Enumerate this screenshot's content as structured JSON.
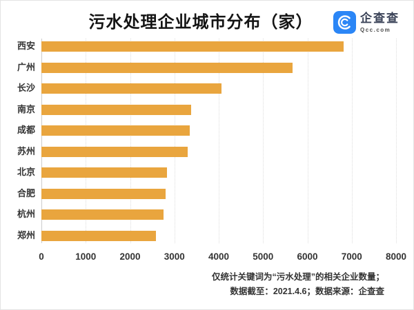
{
  "title": "污水处理企业城市分布（家）",
  "logo": {
    "name": "企查查",
    "domain": "Qcc.com",
    "icon": "qcc-c-swirl",
    "blue": "#2B86F6"
  },
  "chart_data": {
    "type": "bar",
    "orientation": "horizontal",
    "title": "污水处理企业城市分布（家）",
    "categories": [
      "西安",
      "广州",
      "长沙",
      "南京",
      "成都",
      "苏州",
      "北京",
      "合肥",
      "杭州",
      "郑州"
    ],
    "values": [
      6820,
      5660,
      4060,
      3380,
      3350,
      3300,
      2840,
      2800,
      2750,
      2590
    ],
    "xlabel": "",
    "ylabel": "",
    "xlim": [
      0,
      8000
    ],
    "xticks": [
      0,
      1000,
      2000,
      3000,
      4000,
      5000,
      6000,
      7000,
      8000
    ],
    "grid": true,
    "legend": false,
    "bar_color": "#E9A53E"
  },
  "footer": {
    "line1": "仅统计关键词为“污水处理”的相关企业数量；",
    "line2": "数据截至：2021.4.6；数据来源：企查查"
  }
}
